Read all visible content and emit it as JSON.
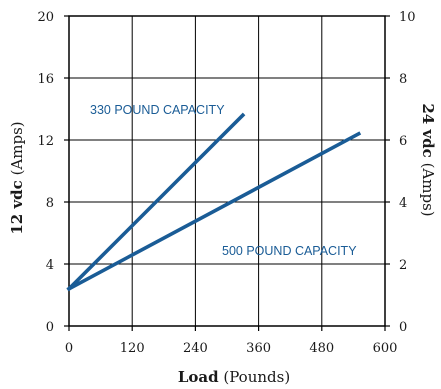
{
  "chart_data": {
    "type": "line",
    "xlabel_bold": "Load",
    "xlabel_rest": " (Pounds)",
    "ylabel_left_bold": "12 vdc",
    "ylabel_left_rest": " (Amps)",
    "ylabel_right_bold": "24 vdc",
    "ylabel_right_rest": " (Amps)",
    "xlim": [
      0,
      600
    ],
    "ylim_left": [
      0,
      20
    ],
    "ylim_right": [
      0,
      10
    ],
    "x_ticks": [
      "0",
      "120",
      "240",
      "360",
      "480",
      "600"
    ],
    "y_left_ticks": [
      "0",
      "4",
      "8",
      "12",
      "16",
      "20"
    ],
    "y_right_ticks": [
      "0",
      "2",
      "4",
      "6",
      "8",
      "10"
    ],
    "grid": true,
    "line_color": "#1a5c96",
    "series": [
      {
        "name": "330 POUND CAPACITY",
        "x": [
          0,
          330
        ],
        "y": [
          2.4,
          13.6
        ]
      },
      {
        "name": "500 POUND CAPACITY",
        "x": [
          0,
          550
        ],
        "y": [
          2.4,
          12.4
        ]
      }
    ]
  }
}
